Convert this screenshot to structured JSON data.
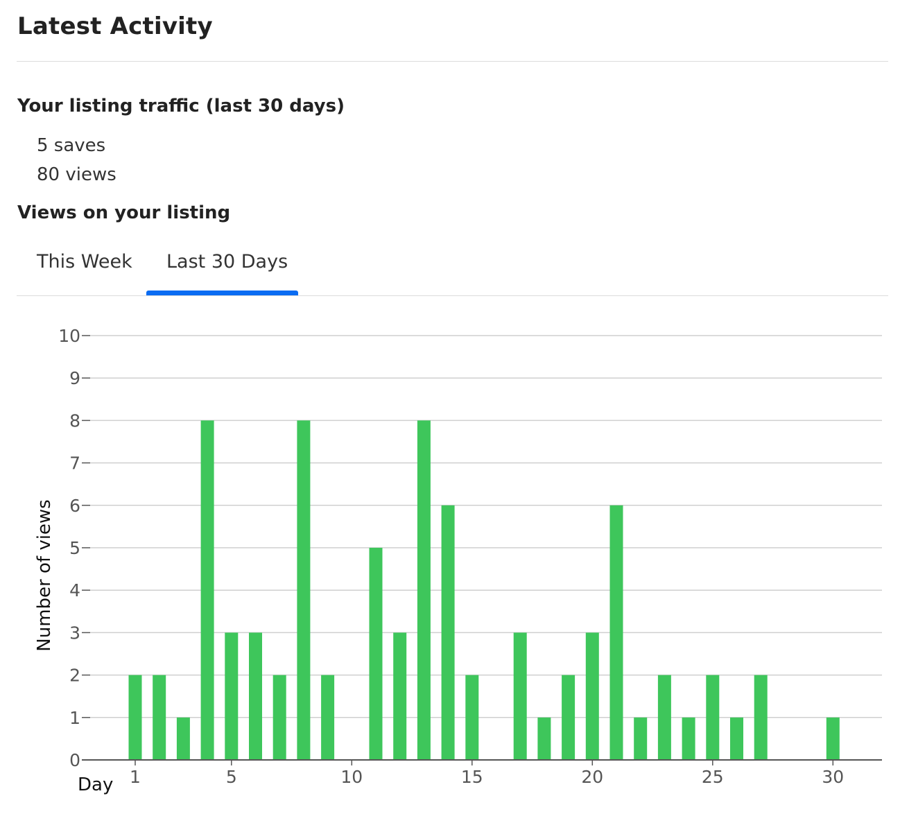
{
  "header": {
    "title": "Latest Activity"
  },
  "traffic": {
    "heading": "Your listing traffic (last 30 days)",
    "saves": "5 saves",
    "views": "80 views"
  },
  "views_section": {
    "heading": "Views on your listing",
    "tabs": [
      {
        "label": "This Week",
        "active": false
      },
      {
        "label": "Last 30 Days",
        "active": true
      }
    ]
  },
  "colors": {
    "bar": "#3ec65b",
    "accent": "#0a6cf2",
    "grid": "#cfcfcf",
    "axis": "#555555"
  },
  "chart_data": {
    "type": "bar",
    "x": [
      1,
      2,
      3,
      4,
      5,
      6,
      7,
      8,
      9,
      10,
      11,
      12,
      13,
      14,
      15,
      16,
      17,
      18,
      19,
      20,
      21,
      22,
      23,
      24,
      25,
      26,
      27,
      28,
      29,
      30
    ],
    "values": [
      2,
      2,
      1,
      8,
      3,
      3,
      2,
      8,
      2,
      0,
      5,
      3,
      8,
      6,
      2,
      0,
      3,
      1,
      2,
      3,
      6,
      1,
      2,
      1,
      2,
      1,
      2,
      0,
      0,
      1
    ],
    "xlabel": "Day",
    "ylabel": "Number of views",
    "ylim": [
      0,
      10
    ],
    "yticks": [
      0,
      1,
      2,
      3,
      4,
      5,
      6,
      7,
      8,
      9,
      10
    ],
    "xticks": [
      1,
      5,
      10,
      15,
      20,
      25,
      30
    ],
    "grid": true
  }
}
